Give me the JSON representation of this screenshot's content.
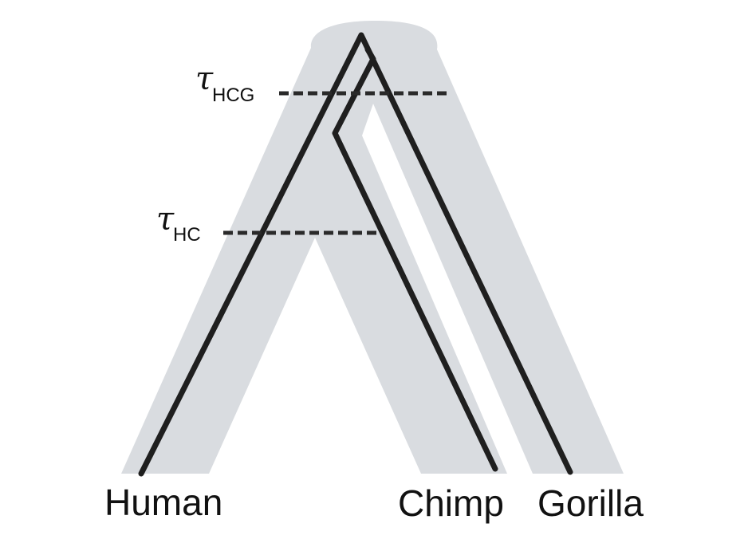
{
  "diagram": {
    "colors": {
      "species_tree": "#d9dce0",
      "gene_tree": "#1f1f1f",
      "divergence_line": "#2a2a2a",
      "background": "#ffffff"
    },
    "divergence_times": [
      {
        "symbol": "τ",
        "subscript": "HCG"
      },
      {
        "symbol": "τ",
        "subscript": "HC"
      }
    ],
    "taxa": [
      "Human",
      "Chimp",
      "Gorilla"
    ]
  }
}
